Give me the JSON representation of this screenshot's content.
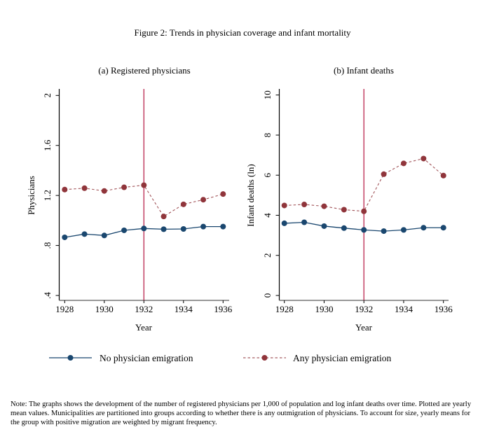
{
  "figure_title": "Figure 2: Trends in physician coverage and infant mortality",
  "colors": {
    "no_emigration": "#1a476f",
    "any_emigration": "#90353b",
    "reference_line": "#b5123f",
    "axis": "#000000"
  },
  "legend": {
    "items": [
      {
        "label": "No physician emigration",
        "style": "solid",
        "color": "#1a476f"
      },
      {
        "label": "Any physician emigration",
        "style": "dashed",
        "color": "#90353b"
      }
    ]
  },
  "note": "Note: The graphs shows the development of the number of registered physicians per 1,000 of population and log infant deaths over time. Plotted are yearly mean values. Municipalities are partitioned into groups according to whether there is any outmigration of physicians. To account for size, yearly means for the group with positive migration are weighted by migrant frequency.",
  "chart_data": [
    {
      "type": "line",
      "title": "(a) Registered physicians",
      "xlabel": "Year",
      "ylabel": "Physicians",
      "x": [
        1928,
        1929,
        1930,
        1931,
        1932,
        1933,
        1934,
        1935,
        1936
      ],
      "xticks": [
        1928,
        1930,
        1932,
        1934,
        1936
      ],
      "xtick_labels": [
        "1928",
        "1930",
        "1932",
        "1934",
        "1936"
      ],
      "yticks": [
        0.4,
        0.8,
        1.2,
        1.6,
        2
      ],
      "ytick_labels": [
        ".4",
        ".8",
        "1.2",
        "1.6",
        "2"
      ],
      "ylim": [
        0.4,
        2
      ],
      "xlim": [
        1928,
        1936
      ],
      "vline_x": 1932,
      "grid": false,
      "legend_position": "bottom",
      "series": [
        {
          "name": "No physician emigration",
          "style": "solid",
          "values": [
            0.865,
            0.891,
            0.88,
            0.921,
            0.936,
            0.93,
            0.932,
            0.951,
            0.951
          ]
        },
        {
          "name": "Any physician emigration",
          "style": "dashed",
          "values": [
            1.247,
            1.258,
            1.236,
            1.265,
            1.282,
            1.032,
            1.129,
            1.166,
            1.211
          ]
        }
      ]
    },
    {
      "type": "line",
      "title": "(b) Infant deaths",
      "xlabel": "Year",
      "ylabel": "Infant deaths (ln)",
      "x": [
        1928,
        1929,
        1930,
        1931,
        1932,
        1933,
        1934,
        1935,
        1936
      ],
      "xticks": [
        1928,
        1930,
        1932,
        1934,
        1936
      ],
      "xtick_labels": [
        "1928",
        "1930",
        "1932",
        "1934",
        "1936"
      ],
      "yticks": [
        0,
        2,
        4,
        6,
        8,
        10
      ],
      "ytick_labels": [
        "0",
        "2",
        "4",
        "6",
        "8",
        "10"
      ],
      "ylim": [
        0,
        10
      ],
      "xlim": [
        1928,
        1936
      ],
      "vline_x": 1932,
      "grid": false,
      "legend_position": "bottom",
      "series": [
        {
          "name": "No physician emigration",
          "style": "solid",
          "values": [
            3.6,
            3.65,
            3.46,
            3.36,
            3.27,
            3.21,
            3.27,
            3.38,
            3.38
          ]
        },
        {
          "name": "Any physician emigration",
          "style": "dashed",
          "values": [
            4.49,
            4.54,
            4.45,
            4.28,
            4.2,
            6.05,
            6.59,
            6.83,
            5.98
          ]
        }
      ]
    }
  ]
}
